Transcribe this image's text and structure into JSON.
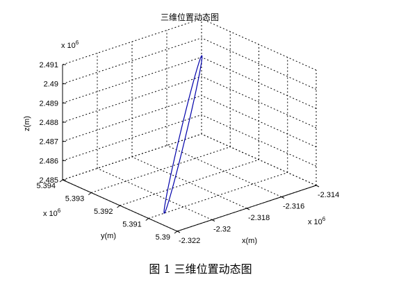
{
  "figure_caption": "图 1  三维位置动态图",
  "chart_data": {
    "type": "line3d",
    "title": "三维位置动态图",
    "xlabel": "x(m)",
    "ylabel": "y(m)",
    "zlabel": "z(m)",
    "x_exponent": "x 10",
    "x_exponent_power": "6",
    "y_exponent": "x 10",
    "y_exponent_power": "6",
    "z_exponent": "x 10",
    "z_exponent_power": "6",
    "xlim": [
      -2.322,
      -2.314
    ],
    "ylim": [
      5.39,
      5.394
    ],
    "zlim": [
      2.485,
      2.491
    ],
    "x_ticks": [
      -2.322,
      -2.32,
      -2.318,
      -2.316,
      -2.314
    ],
    "x_tick_labels": [
      "-2.322",
      "-2.32",
      "-2.318",
      "-2.316",
      "-2.314"
    ],
    "y_ticks": [
      5.39,
      5.391,
      5.392,
      5.393,
      5.394
    ],
    "y_tick_labels": [
      "5.39",
      "5.391",
      "5.392",
      "5.393",
      "5.394"
    ],
    "z_ticks": [
      2.485,
      2.486,
      2.487,
      2.488,
      2.489,
      2.49,
      2.491
    ],
    "z_tick_labels": [
      "2.485",
      "2.486",
      "2.487",
      "2.488",
      "2.489",
      "2.49",
      "2.491"
    ],
    "grid": true,
    "series": [
      {
        "color": "#0000aa",
        "shape": "ellipse",
        "center": {
          "x": -2.3182,
          "y": 5.3921,
          "z": 2.4875
        },
        "semi_axis_1": {
          "x": 0.0029,
          "y": 0.0011,
          "z": 0.0025
        },
        "semi_axis_2": {
          "x": 0.0001,
          "y": -3e-05,
          "z": -0.0001
        }
      }
    ]
  }
}
